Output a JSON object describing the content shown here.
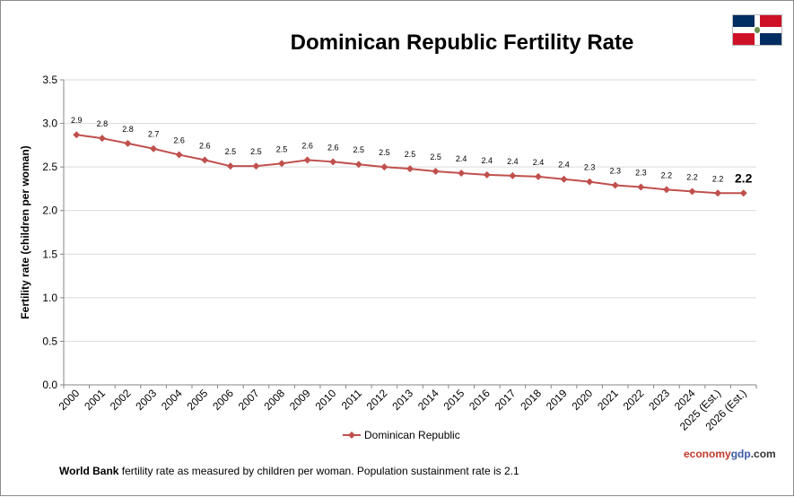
{
  "chart_data": {
    "type": "line",
    "title": "Dominican Republic Fertility Rate",
    "ylabel": "Fertility rate (children per woman)",
    "xlabel": "",
    "ylim": [
      0,
      3.5
    ],
    "yticks": [
      "0.0",
      "0.5",
      "1.0",
      "1.5",
      "2.0",
      "2.5",
      "3.0",
      "3.5"
    ],
    "grid": true,
    "legend_position": "bottom",
    "categories": [
      "2000",
      "2001",
      "2002",
      "2003",
      "2004",
      "2005",
      "2006",
      "2007",
      "2008",
      "2009",
      "2010",
      "2011",
      "2012",
      "2013",
      "2014",
      "2015",
      "2016",
      "2017",
      "2018",
      "2019",
      "2020",
      "2021",
      "2022",
      "2023",
      "2024",
      "2025 (Est.)",
      "2026 (Est.)"
    ],
    "series": [
      {
        "name": "Dominican Republic",
        "color": "#c0504d",
        "values": [
          2.87,
          2.83,
          2.77,
          2.71,
          2.64,
          2.58,
          2.51,
          2.51,
          2.54,
          2.58,
          2.56,
          2.53,
          2.5,
          2.48,
          2.45,
          2.43,
          2.41,
          2.4,
          2.39,
          2.36,
          2.33,
          2.29,
          2.27,
          2.24,
          2.22,
          2.2,
          2.2
        ],
        "labels": [
          "2.9",
          "2.8",
          "2.8",
          "2.7",
          "2.6",
          "2.6",
          "2.5",
          "2.5",
          "2.5",
          "2.6",
          "2.6",
          "2.5",
          "2.5",
          "2.5",
          "2.5",
          "2.4",
          "2.4",
          "2.4",
          "2.4",
          "2.4",
          "2.3",
          "2.3",
          "2.3",
          "2.2",
          "2.2",
          "2.2",
          "2.2"
        ]
      }
    ]
  },
  "footnote": {
    "source_bold": "World Bank",
    "text": " fertility rate as measured by children per woman.  Population sustainment rate is 2.1"
  },
  "brand": {
    "part1": "economy",
    "part2": "gdp",
    "part3": ".com"
  },
  "flag": {
    "icon": "dominican-republic-flag-icon",
    "blue": "#002d62",
    "red": "#ce1126"
  }
}
